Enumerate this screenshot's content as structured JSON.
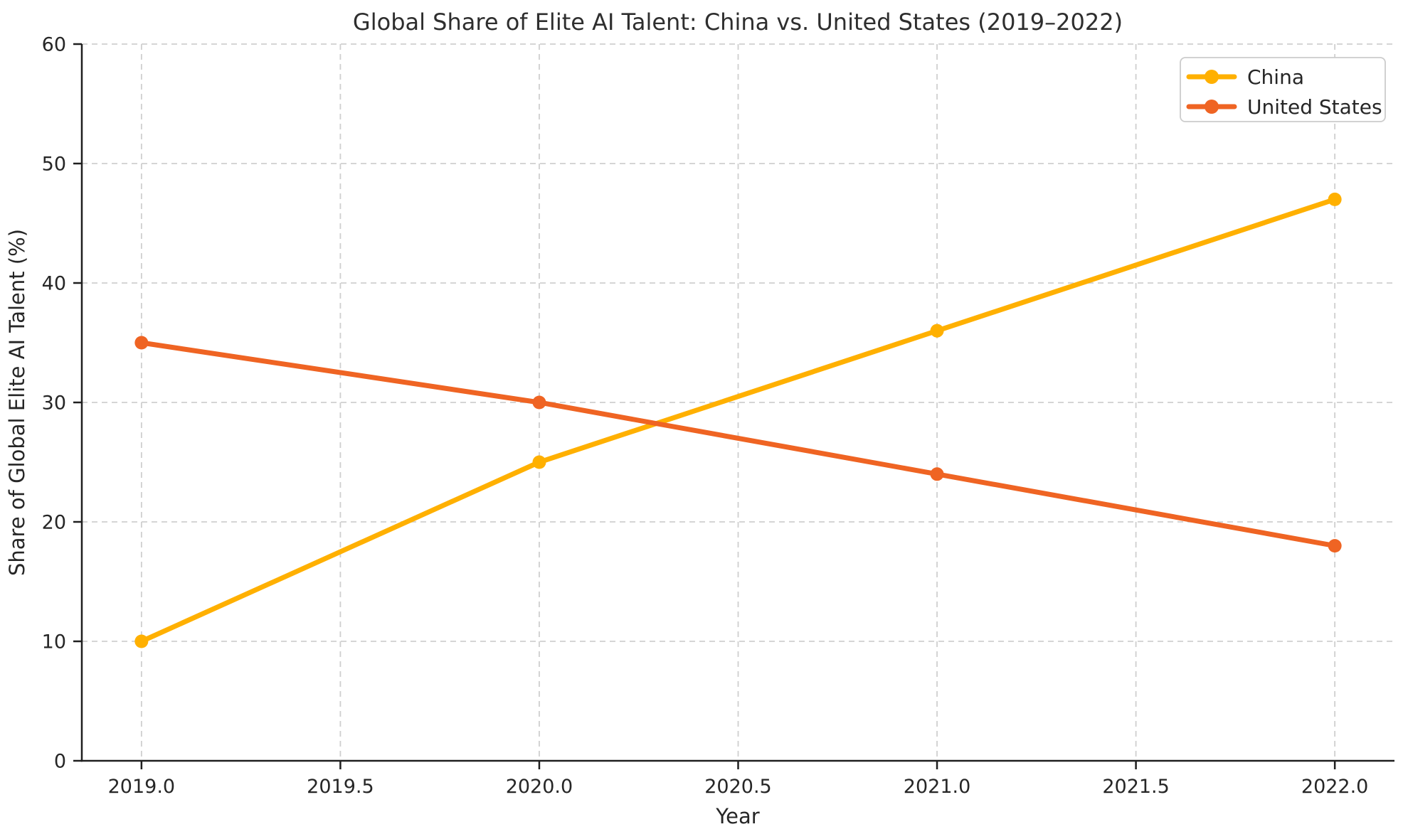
{
  "chart_data": {
    "type": "line",
    "title": "Global Share of Elite AI Talent: China vs. United States (2019–2022)",
    "xlabel": "Year",
    "ylabel": "Share of Global Elite AI Talent (%)",
    "x": [
      2019,
      2020,
      2021,
      2022
    ],
    "series": [
      {
        "name": "China",
        "color": "#FFB000",
        "values": [
          10,
          25,
          36,
          47
        ]
      },
      {
        "name": "United States",
        "color": "#EF6423",
        "values": [
          35,
          30,
          24,
          18
        ]
      }
    ],
    "xlim": [
      2018.85,
      2022.15
    ],
    "ylim": [
      0,
      60
    ],
    "xticks": [
      2019.0,
      2019.5,
      2020.0,
      2020.5,
      2021.0,
      2021.5,
      2022.0
    ],
    "xtick_labels": [
      "2019.0",
      "2019.5",
      "2020.0",
      "2020.5",
      "2021.0",
      "2021.5",
      "2022.0"
    ],
    "yticks": [
      0,
      10,
      20,
      30,
      40,
      50,
      60
    ],
    "ytick_labels": [
      "0",
      "10",
      "20",
      "30",
      "40",
      "50",
      "60"
    ],
    "grid": true,
    "legend_position": "upper right",
    "colors": {
      "grid": "#cfcfcf",
      "spine": "#1f1f1f",
      "text": "#262626",
      "background": "#ffffff",
      "legend_border": "#cccccc"
    }
  }
}
